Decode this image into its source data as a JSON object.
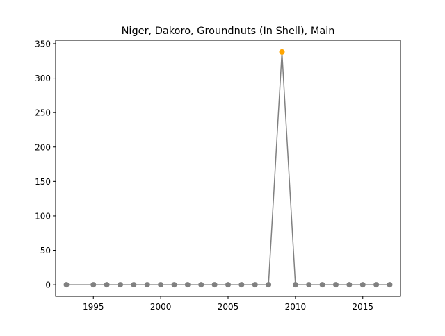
{
  "chart_data": {
    "type": "line",
    "title": "Niger, Dakoro, Groundnuts (In Shell), Main",
    "xlabel": "",
    "ylabel": "",
    "x": [
      1993,
      1995,
      1996,
      1997,
      1998,
      1999,
      2000,
      2001,
      2002,
      2003,
      2004,
      2005,
      2006,
      2007,
      2008,
      2009,
      2010,
      2011,
      2012,
      2013,
      2014,
      2015,
      2016,
      2017
    ],
    "series": [
      {
        "values": [
          0,
          0,
          0,
          0,
          0,
          0,
          0,
          0,
          0,
          0,
          0,
          0,
          0,
          0,
          0,
          338,
          0,
          0,
          0,
          0,
          0,
          0,
          0,
          0
        ]
      }
    ],
    "highlight_x": 2009,
    "xlim": [
      1992.2,
      2017.8
    ],
    "ylim": [
      -17,
      355
    ],
    "xticks": [
      1995,
      2000,
      2005,
      2010,
      2015
    ],
    "yticks": [
      0,
      50,
      100,
      150,
      200,
      250,
      300,
      350
    ],
    "grid": false,
    "colors": {
      "line": "#808080",
      "marker": "#808080",
      "highlight_marker": "#ffa500"
    }
  }
}
